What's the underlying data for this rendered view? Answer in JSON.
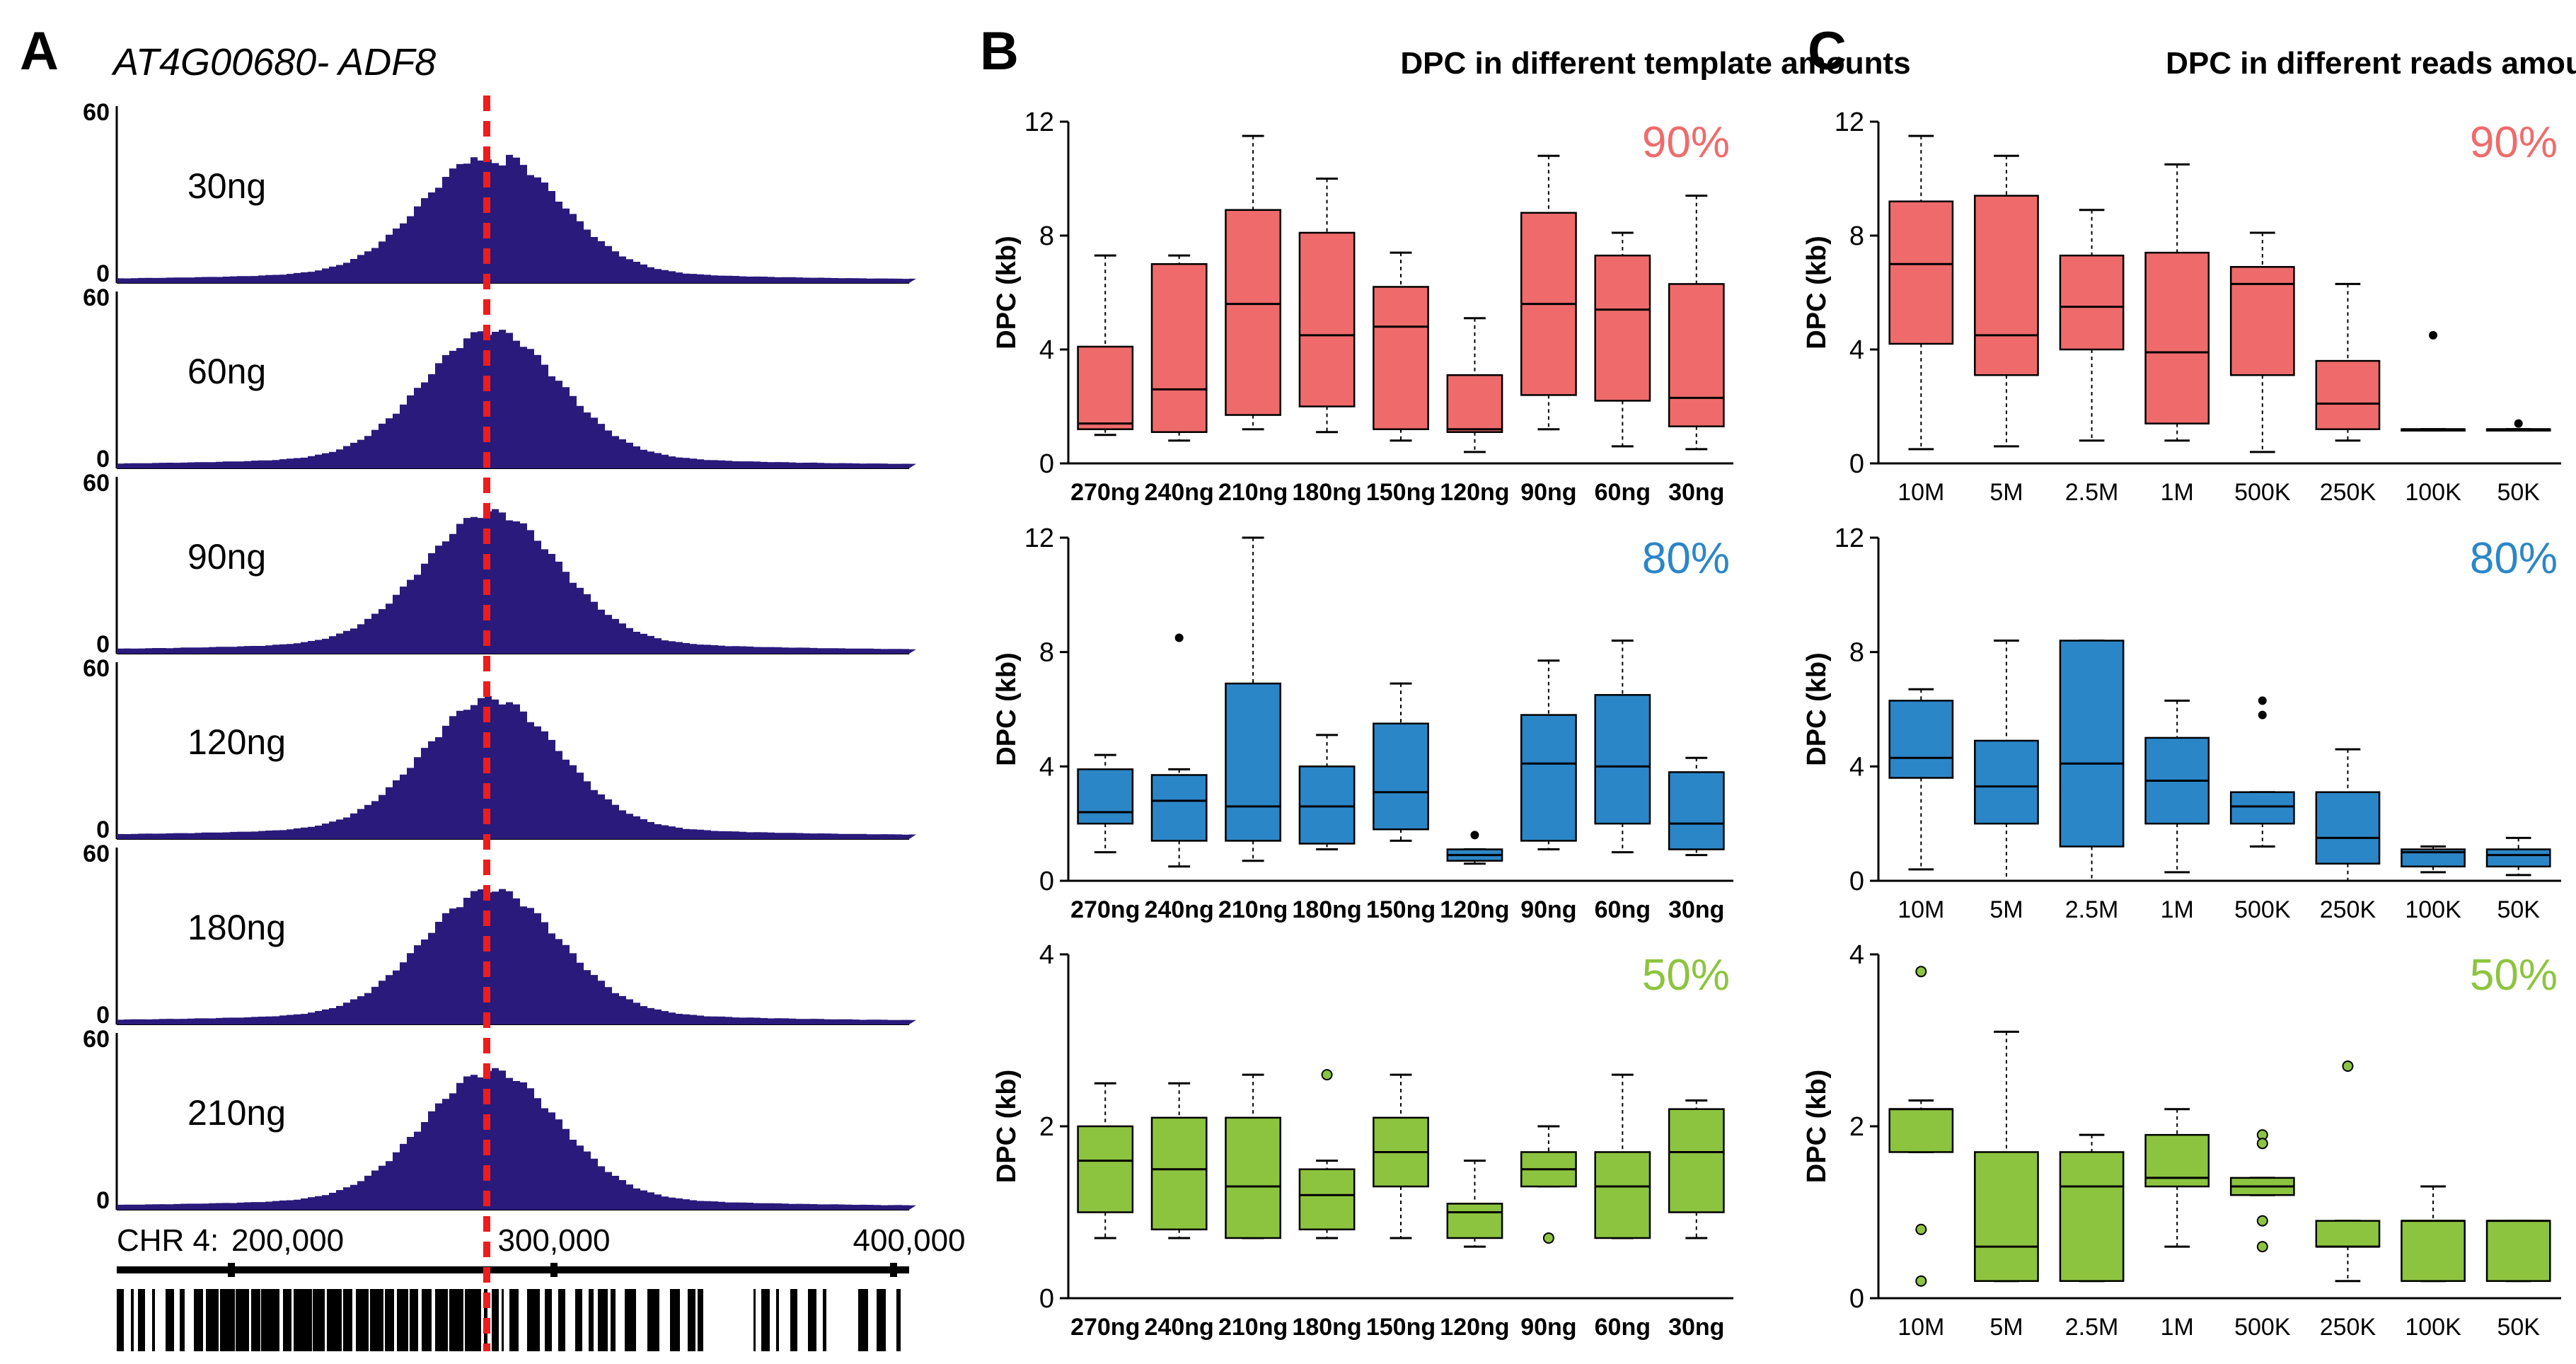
{
  "colors": {
    "track": "#2a1a7c",
    "redline": "#ee1c1c",
    "red": "#ef6b6b",
    "blue": "#2b86c8",
    "green": "#8dc43f",
    "pct_red": "#ef6b6b",
    "pct_blue": "#2b86c8",
    "pct_green": "#8dc43f"
  },
  "panel_a": {
    "letter": "A",
    "title": "AT4G00680- ADF8",
    "ymax_label": "60",
    "ymin_label": "0",
    "tracks": [
      {
        "label": "30ng"
      },
      {
        "label": "60ng"
      },
      {
        "label": "90ng"
      },
      {
        "label": "120ng"
      },
      {
        "label": "180ng"
      },
      {
        "label": "210ng"
      }
    ],
    "ruler": {
      "chr": "CHR 4:",
      "ticks": [
        "200,000",
        "300,000",
        "400,000"
      ]
    }
  },
  "panel_b": {
    "letter": "B",
    "title": "DPC in different template amounts"
  },
  "panel_c": {
    "letter": "C",
    "title": "DPC in different reads amounts"
  },
  "chart_data": [
    {
      "type": "box",
      "panel": "B",
      "title": "DPC in different template amounts",
      "tag": "90%",
      "ylabel": "DPC (kb)",
      "ylim": [
        0,
        12
      ],
      "yticks": [
        "0",
        "4",
        "8",
        "12"
      ],
      "categories": [
        "270ng",
        "240ng",
        "210ng",
        "180ng",
        "150ng",
        "120ng",
        "90ng",
        "60ng",
        "30ng"
      ],
      "boxes": [
        {
          "min": 1.0,
          "q1": 1.2,
          "median": 1.4,
          "q3": 4.1,
          "max": 7.3
        },
        {
          "min": 0.8,
          "q1": 1.1,
          "median": 2.6,
          "q3": 7.0,
          "max": 7.3
        },
        {
          "min": 1.2,
          "q1": 1.7,
          "median": 5.6,
          "q3": 8.9,
          "max": 11.5
        },
        {
          "min": 1.1,
          "q1": 2.0,
          "median": 4.5,
          "q3": 8.1,
          "max": 10.0
        },
        {
          "min": 0.8,
          "q1": 1.2,
          "median": 4.8,
          "q3": 6.2,
          "max": 7.4
        },
        {
          "min": 0.4,
          "q1": 1.1,
          "median": 1.2,
          "q3": 3.1,
          "max": 5.1
        },
        {
          "min": 1.2,
          "q1": 2.4,
          "median": 5.6,
          "q3": 8.8,
          "max": 10.8
        },
        {
          "min": 0.6,
          "q1": 2.2,
          "median": 5.4,
          "q3": 7.3,
          "max": 8.1
        },
        {
          "min": 0.5,
          "q1": 1.3,
          "median": 2.3,
          "q3": 6.3,
          "max": 9.4
        }
      ],
      "outliers": [],
      "color": "red"
    },
    {
      "type": "box",
      "panel": "B",
      "title": "",
      "tag": "80%",
      "ylabel": "DPC (kb)",
      "ylim": [
        0,
        12
      ],
      "yticks": [
        "0",
        "4",
        "8",
        "12"
      ],
      "categories": [
        "270ng",
        "240ng",
        "210ng",
        "180ng",
        "150ng",
        "120ng",
        "90ng",
        "60ng",
        "30ng"
      ],
      "boxes": [
        {
          "min": 1.0,
          "q1": 2.0,
          "median": 2.4,
          "q3": 3.9,
          "max": 4.4
        },
        {
          "min": 0.5,
          "q1": 1.4,
          "median": 2.8,
          "q3": 3.7,
          "max": 3.9
        },
        {
          "min": 0.7,
          "q1": 1.4,
          "median": 2.6,
          "q3": 6.9,
          "max": 12.0
        },
        {
          "min": 1.1,
          "q1": 1.3,
          "median": 2.6,
          "q3": 4.0,
          "max": 5.1
        },
        {
          "min": 1.4,
          "q1": 1.8,
          "median": 3.1,
          "q3": 5.5,
          "max": 6.9
        },
        {
          "min": 0.6,
          "q1": 0.7,
          "median": 0.9,
          "q3": 1.1,
          "max": 1.1
        },
        {
          "min": 1.1,
          "q1": 1.4,
          "median": 4.1,
          "q3": 5.8,
          "max": 7.7
        },
        {
          "min": 1.0,
          "q1": 2.0,
          "median": 4.0,
          "q3": 6.5,
          "max": 8.4
        },
        {
          "min": 0.9,
          "q1": 1.1,
          "median": 2.0,
          "q3": 3.8,
          "max": 4.3
        }
      ],
      "outliers": [
        [
          1,
          8.5
        ],
        [
          5,
          1.6
        ]
      ],
      "color": "blue"
    },
    {
      "type": "box",
      "panel": "B",
      "title": "",
      "tag": "50%",
      "ylabel": "DPC (kb)",
      "ylim": [
        0,
        4
      ],
      "yticks": [
        "0",
        "2",
        "4"
      ],
      "categories": [
        "270ng",
        "240ng",
        "210ng",
        "180ng",
        "150ng",
        "120ng",
        "90ng",
        "60ng",
        "30ng"
      ],
      "boxes": [
        {
          "min": 0.7,
          "q1": 1.0,
          "median": 1.6,
          "q3": 2.0,
          "max": 2.5
        },
        {
          "min": 0.7,
          "q1": 0.8,
          "median": 1.5,
          "q3": 2.1,
          "max": 2.5
        },
        {
          "min": 0.7,
          "q1": 0.7,
          "median": 1.3,
          "q3": 2.1,
          "max": 2.6
        },
        {
          "min": 0.7,
          "q1": 0.8,
          "median": 1.2,
          "q3": 1.5,
          "max": 1.6
        },
        {
          "min": 0.7,
          "q1": 1.3,
          "median": 1.7,
          "q3": 2.1,
          "max": 2.6
        },
        {
          "min": 0.6,
          "q1": 0.7,
          "median": 1.0,
          "q3": 1.1,
          "max": 1.6
        },
        {
          "min": 1.3,
          "q1": 1.3,
          "median": 1.5,
          "q3": 1.7,
          "max": 2.0
        },
        {
          "min": 0.7,
          "q1": 0.7,
          "median": 1.3,
          "q3": 1.7,
          "max": 2.6
        },
        {
          "min": 0.7,
          "q1": 1.0,
          "median": 1.7,
          "q3": 2.2,
          "max": 2.3
        }
      ],
      "outliers": [
        [
          3,
          2.6
        ],
        [
          6,
          0.7
        ]
      ],
      "color": "green"
    },
    {
      "type": "box",
      "panel": "C",
      "title": "DPC in different reads amounts",
      "tag": "90%",
      "ylabel": "DPC (kb)",
      "ylim": [
        0,
        12
      ],
      "yticks": [
        "0",
        "4",
        "8",
        "12"
      ],
      "categories": [
        "10M",
        "5M",
        "2.5M",
        "1M",
        "500K",
        "250K",
        "100K",
        "50K"
      ],
      "boxes": [
        {
          "min": 0.5,
          "q1": 4.2,
          "median": 7.0,
          "q3": 9.2,
          "max": 11.5
        },
        {
          "min": 0.6,
          "q1": 3.1,
          "median": 4.5,
          "q3": 9.4,
          "max": 10.8
        },
        {
          "min": 0.8,
          "q1": 4.0,
          "median": 5.5,
          "q3": 7.3,
          "max": 8.9
        },
        {
          "min": 0.8,
          "q1": 1.4,
          "median": 3.9,
          "q3": 7.4,
          "max": 10.5
        },
        {
          "min": 0.4,
          "q1": 3.1,
          "median": 6.3,
          "q3": 6.9,
          "max": 8.1
        },
        {
          "min": 0.8,
          "q1": 1.2,
          "median": 2.1,
          "q3": 3.6,
          "max": 6.3
        },
        {
          "min": 1.2,
          "q1": 1.2,
          "median": 1.2,
          "q3": 1.2,
          "max": 1.2
        },
        {
          "min": 1.2,
          "q1": 1.2,
          "median": 1.2,
          "q3": 1.2,
          "max": 1.2
        }
      ],
      "outliers": [
        [
          6,
          4.5
        ],
        [
          7,
          1.4
        ]
      ],
      "color": "red"
    },
    {
      "type": "box",
      "panel": "C",
      "title": "",
      "tag": "80%",
      "ylabel": "DPC (kb)",
      "ylim": [
        0,
        12
      ],
      "yticks": [
        "0",
        "4",
        "8",
        "12"
      ],
      "categories": [
        "10M",
        "5M",
        "2.5M",
        "1M",
        "500K",
        "250K",
        "100K",
        "50K"
      ],
      "boxes": [
        {
          "min": 0.4,
          "q1": 3.6,
          "median": 4.3,
          "q3": 6.3,
          "max": 6.7
        },
        {
          "min": 0.0,
          "q1": 2.0,
          "median": 3.3,
          "q3": 4.9,
          "max": 8.4
        },
        {
          "min": 0.0,
          "q1": 1.2,
          "median": 4.1,
          "q3": 8.4,
          "max": 8.4
        },
        {
          "min": 0.3,
          "q1": 2.0,
          "median": 3.5,
          "q3": 5.0,
          "max": 6.3
        },
        {
          "min": 1.2,
          "q1": 2.0,
          "median": 2.6,
          "q3": 3.1,
          "max": 3.1
        },
        {
          "min": 0.0,
          "q1": 0.6,
          "median": 1.5,
          "q3": 3.1,
          "max": 4.6
        },
        {
          "min": 0.3,
          "q1": 0.5,
          "median": 1.0,
          "q3": 1.1,
          "max": 1.2
        },
        {
          "min": 0.2,
          "q1": 0.5,
          "median": 0.9,
          "q3": 1.1,
          "max": 1.5
        }
      ],
      "outliers": [
        [
          4,
          6.3
        ],
        [
          4,
          5.8
        ]
      ],
      "color": "blue"
    },
    {
      "type": "box",
      "panel": "C",
      "title": "",
      "tag": "50%",
      "ylabel": "DPC (kb)",
      "ylim": [
        0,
        4
      ],
      "yticks": [
        "0",
        "2",
        "4"
      ],
      "categories": [
        "10M",
        "5M",
        "2.5M",
        "1M",
        "500K",
        "250K",
        "100K",
        "50K"
      ],
      "boxes": [
        {
          "min": 1.7,
          "q1": 1.7,
          "median": 2.2,
          "q3": 2.2,
          "max": 2.3
        },
        {
          "min": 0.2,
          "q1": 0.2,
          "median": 0.6,
          "q3": 1.7,
          "max": 3.1
        },
        {
          "min": 0.2,
          "q1": 0.2,
          "median": 1.3,
          "q3": 1.7,
          "max": 1.9
        },
        {
          "min": 0.6,
          "q1": 1.3,
          "median": 1.4,
          "q3": 1.9,
          "max": 2.2
        },
        {
          "min": 1.2,
          "q1": 1.2,
          "median": 1.3,
          "q3": 1.4,
          "max": 1.4
        },
        {
          "min": 0.2,
          "q1": 0.6,
          "median": 0.6,
          "q3": 0.9,
          "max": 0.9
        },
        {
          "min": 0.2,
          "q1": 0.2,
          "median": 0.9,
          "q3": 0.9,
          "max": 1.3
        },
        {
          "min": 0.2,
          "q1": 0.2,
          "median": 0.9,
          "q3": 0.9,
          "max": 0.9
        }
      ],
      "outliers": [
        [
          0,
          3.8
        ],
        [
          0,
          0.8
        ],
        [
          0,
          0.2
        ],
        [
          4,
          1.9
        ],
        [
          4,
          1.8
        ],
        [
          4,
          0.9
        ],
        [
          4,
          0.6
        ],
        [
          5,
          2.7
        ]
      ],
      "color": "green"
    }
  ]
}
